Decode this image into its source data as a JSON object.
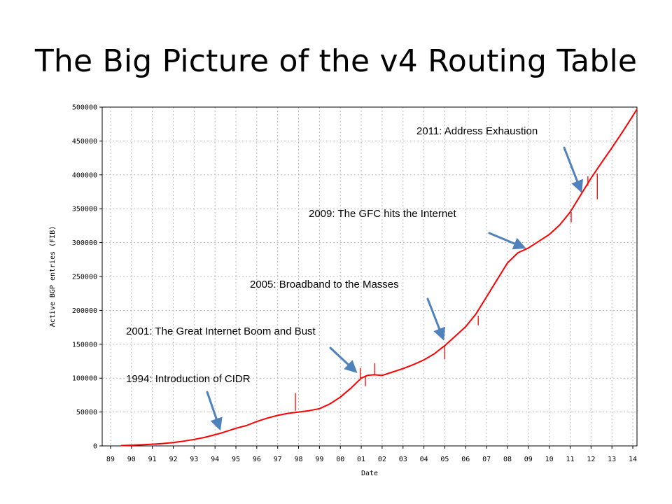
{
  "slide": {
    "title": "The Big Picture of the v4 Routing Table"
  },
  "chart_data": {
    "type": "line",
    "xlabel": "Date",
    "ylabel": "Active BGP entries (FIB)",
    "xlim": [
      1988.6,
      2014.2
    ],
    "ylim": [
      0,
      500000
    ],
    "xticks": [
      {
        "v": 1989,
        "label": "89"
      },
      {
        "v": 1990,
        "label": "90"
      },
      {
        "v": 1991,
        "label": "91"
      },
      {
        "v": 1992,
        "label": "92"
      },
      {
        "v": 1993,
        "label": "93"
      },
      {
        "v": 1994,
        "label": "94"
      },
      {
        "v": 1995,
        "label": "95"
      },
      {
        "v": 1996,
        "label": "96"
      },
      {
        "v": 1997,
        "label": "97"
      },
      {
        "v": 1998,
        "label": "98"
      },
      {
        "v": 1999,
        "label": "99"
      },
      {
        "v": 2000,
        "label": "00"
      },
      {
        "v": 2001,
        "label": "01"
      },
      {
        "v": 2002,
        "label": "02"
      },
      {
        "v": 2003,
        "label": "03"
      },
      {
        "v": 2004,
        "label": "04"
      },
      {
        "v": 2005,
        "label": "05"
      },
      {
        "v": 2006,
        "label": "06"
      },
      {
        "v": 2007,
        "label": "07"
      },
      {
        "v": 2008,
        "label": "08"
      },
      {
        "v": 2009,
        "label": "09"
      },
      {
        "v": 2010,
        "label": "10"
      },
      {
        "v": 2011,
        "label": "11"
      },
      {
        "v": 2012,
        "label": "12"
      },
      {
        "v": 2013,
        "label": "13"
      },
      {
        "v": 2014,
        "label": "14"
      }
    ],
    "yticks": [
      {
        "v": 0,
        "label": "0"
      },
      {
        "v": 50000,
        "label": "50000"
      },
      {
        "v": 100000,
        "label": "100000"
      },
      {
        "v": 150000,
        "label": "150000"
      },
      {
        "v": 200000,
        "label": "200000"
      },
      {
        "v": 250000,
        "label": "250000"
      },
      {
        "v": 300000,
        "label": "300000"
      },
      {
        "v": 350000,
        "label": "350000"
      },
      {
        "v": 400000,
        "label": "400000"
      },
      {
        "v": 450000,
        "label": "450000"
      },
      {
        "v": 500000,
        "label": "500000"
      }
    ],
    "grid": true,
    "series": [
      {
        "color": "#ff0000",
        "x": [
          1989.5,
          1990.0,
          1990.5,
          1991.0,
          1991.5,
          1992.0,
          1992.5,
          1993.0,
          1993.5,
          1994.0,
          1994.3,
          1994.5,
          1995.0,
          1995.5,
          1996.0,
          1996.5,
          1997.0,
          1997.5,
          1998.0,
          1998.5,
          1999.0,
          1999.5,
          2000.0,
          2000.5,
          2001.0,
          2001.3,
          2001.6,
          2002.0,
          2002.5,
          2003.0,
          2003.5,
          2004.0,
          2004.5,
          2005.0,
          2005.5,
          2006.0,
          2006.5,
          2007.0,
          2007.5,
          2008.0,
          2008.5,
          2009.0,
          2009.5,
          2010.0,
          2010.5,
          2011.0,
          2011.5,
          2012.0,
          2012.5,
          2013.0,
          2013.5,
          2014.0,
          2014.2
        ],
        "y": [
          500,
          1000,
          1700,
          2500,
          3500,
          5000,
          7000,
          9500,
          12500,
          16500,
          19000,
          21000,
          26000,
          30000,
          36000,
          41000,
          45000,
          48000,
          50000,
          52000,
          55000,
          62000,
          72000,
          85000,
          100000,
          104000,
          105000,
          104000,
          109000,
          114000,
          120000,
          127000,
          136000,
          148000,
          162000,
          176000,
          195000,
          220000,
          245000,
          270000,
          285000,
          292000,
          302000,
          312000,
          326000,
          345000,
          370000,
          395000,
          418000,
          440000,
          463000,
          487000,
          497000
        ]
      }
    ],
    "spikes": [
      {
        "x": 1997.85,
        "from": 52000,
        "to": 78000
      },
      {
        "x": 2000.95,
        "from": 100000,
        "to": 115000
      },
      {
        "x": 2001.2,
        "from": 104000,
        "to": 88000
      },
      {
        "x": 2001.65,
        "from": 105000,
        "to": 122000
      },
      {
        "x": 2005.0,
        "from": 148000,
        "to": 128000
      },
      {
        "x": 2006.6,
        "from": 192000,
        "to": 178000
      },
      {
        "x": 2011.05,
        "from": 345000,
        "to": 330000
      },
      {
        "x": 2011.85,
        "from": 384000,
        "to": 398000
      },
      {
        "x": 2012.3,
        "from": 402000,
        "to": 364000
      }
    ],
    "annotations": [
      {
        "id": "cidr",
        "text": "1994: Introduction of CIDR",
        "target_x": 1994.3,
        "target_y": 19000
      },
      {
        "id": "boom",
        "text": "2001: The Great Internet Boom and Bust",
        "target_x": 2000.9,
        "target_y": 105000
      },
      {
        "id": "broadband",
        "text": "2005: Broadband to the Masses",
        "target_x": 2005.0,
        "target_y": 152000
      },
      {
        "id": "gfc",
        "text": "2009: The GFC hits the Internet",
        "target_x": 2009.0,
        "target_y": 290000
      },
      {
        "id": "exhaustion",
        "text": "2011: Address Exhaustion",
        "target_x": 2011.6,
        "target_y": 370000
      }
    ]
  }
}
